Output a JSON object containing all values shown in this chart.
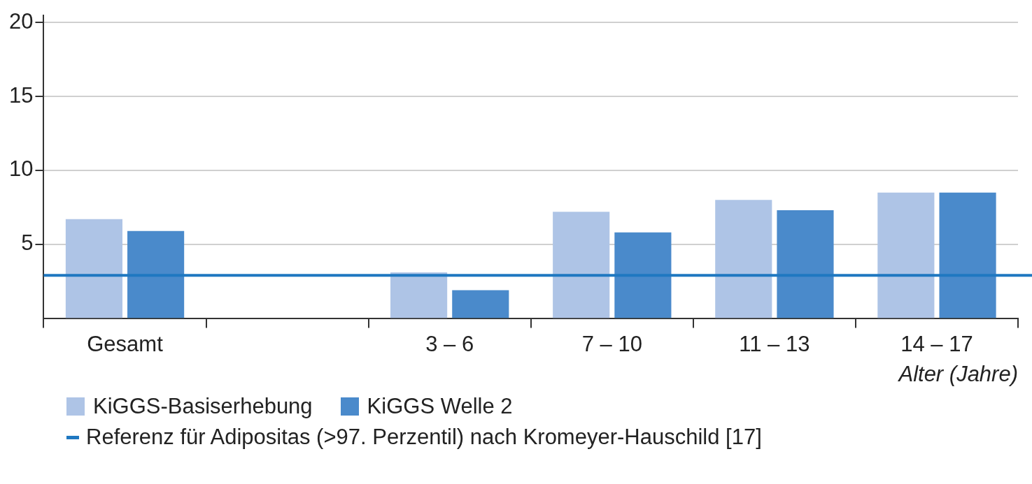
{
  "chart_data": {
    "type": "bar",
    "xlabel": "Alter (Jahre)",
    "categories": [
      "Gesamt",
      null,
      "3 – 6",
      "7 – 10",
      "11 – 13",
      "14 – 17"
    ],
    "series": [
      {
        "name": "KiGGS-Basiserhebung",
        "color": "#aec4e6",
        "values": [
          6.7,
          null,
          3.1,
          7.2,
          8.0,
          8.5
        ]
      },
      {
        "name": "KiGGS Welle 2",
        "color": "#4a8acb",
        "values": [
          5.9,
          null,
          1.9,
          5.8,
          7.3,
          8.5
        ]
      }
    ],
    "ylim": [
      0,
      20.5
    ],
    "yticks": [
      5,
      10,
      15,
      20
    ],
    "grid": "y",
    "legend": "bottom",
    "ref_lines": [
      {
        "axis": "y",
        "value": 2.9,
        "label": "Referenz für Adipositas (>97. Perzentil) nach Kromeyer-Hauschild [17]",
        "color": "#1f78c1"
      }
    ]
  }
}
